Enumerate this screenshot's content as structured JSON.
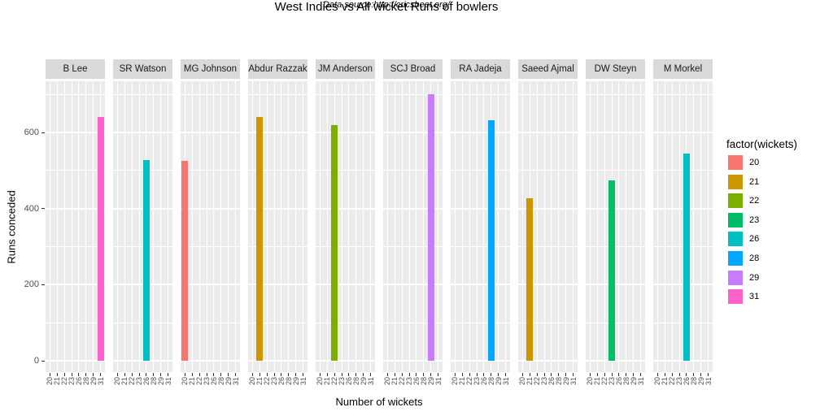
{
  "chart_data": {
    "type": "bar",
    "faceted_by": "bowler",
    "title": "West Indies vs All wicket Runs of bowlers",
    "subtitle": "Data source:http://cricsheet.org/",
    "xlabel": "Number of wickets",
    "ylabel": "Runs conceded",
    "x_categories": [
      "20",
      "21",
      "22",
      "23",
      "26",
      "28",
      "29",
      "31"
    ],
    "y_ticks": [
      0,
      200,
      400,
      600
    ],
    "y_minor_gridlines": [
      100,
      300,
      500,
      700
    ],
    "ylim": [
      0,
      735
    ],
    "grid": true,
    "legend": {
      "title": "factor(wickets)",
      "position": "right",
      "entries": [
        {
          "label": "20",
          "color": "#F8766D"
        },
        {
          "label": "21",
          "color": "#CD9600"
        },
        {
          "label": "22",
          "color": "#7CAE00"
        },
        {
          "label": "23",
          "color": "#00BE67"
        },
        {
          "label": "26",
          "color": "#00BFC4"
        },
        {
          "label": "28",
          "color": "#00A9FF"
        },
        {
          "label": "29",
          "color": "#C77CFF"
        },
        {
          "label": "31",
          "color": "#FF61CC"
        }
      ]
    },
    "facets": [
      {
        "bowler": "B Lee",
        "wickets": "31",
        "runs_conceded": 640
      },
      {
        "bowler": "SR Watson",
        "wickets": "26",
        "runs_conceded": 528
      },
      {
        "bowler": "MG Johnson",
        "wickets": "20",
        "runs_conceded": 526
      },
      {
        "bowler": "Abdur Razzak",
        "wickets": "21",
        "runs_conceded": 640
      },
      {
        "bowler": "JM Anderson",
        "wickets": "22",
        "runs_conceded": 620
      },
      {
        "bowler": "SCJ Broad",
        "wickets": "29",
        "runs_conceded": 700
      },
      {
        "bowler": "RA Jadeja",
        "wickets": "28",
        "runs_conceded": 633
      },
      {
        "bowler": "Saeed Ajmal",
        "wickets": "21",
        "runs_conceded": 428
      },
      {
        "bowler": "DW Steyn",
        "wickets": "23",
        "runs_conceded": 475
      },
      {
        "bowler": "M Morkel",
        "wickets": "26",
        "runs_conceded": 545
      }
    ]
  },
  "colors": {
    "panel_background": "#EBEBEB",
    "strip_background": "#D9D9D9",
    "gridline": "#FFFFFF",
    "tick": "#333333",
    "tick_label": "#4D4D4D",
    "text": "#000000"
  }
}
